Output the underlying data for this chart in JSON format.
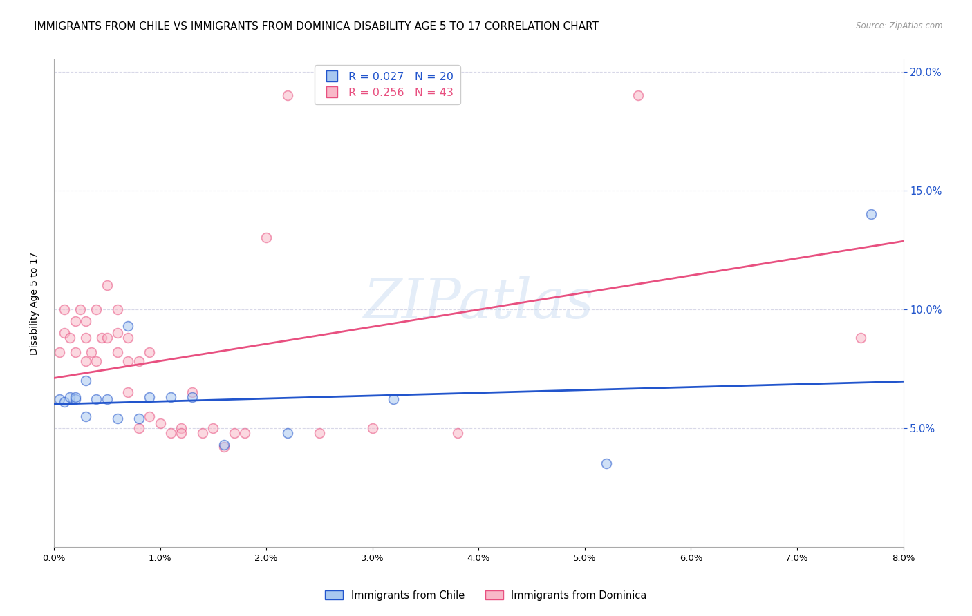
{
  "title": "IMMIGRANTS FROM CHILE VS IMMIGRANTS FROM DOMINICA DISABILITY AGE 5 TO 17 CORRELATION CHART",
  "source": "Source: ZipAtlas.com",
  "ylabel": "Disability Age 5 to 17",
  "x_min": 0.0,
  "x_max": 0.08,
  "y_min": 0.0,
  "y_max": 0.205,
  "chile_color": "#a8c8f0",
  "dominica_color": "#f8b8c8",
  "chile_line_color": "#2255cc",
  "dominica_line_color": "#e85080",
  "legend_chile_label": "R = 0.027   N = 20",
  "legend_dominica_label": "R = 0.256   N = 43",
  "legend_chile_series": "Immigrants from Chile",
  "legend_dominica_series": "Immigrants from Dominica",
  "chile_x": [
    0.0005,
    0.001,
    0.0015,
    0.002,
    0.002,
    0.003,
    0.003,
    0.004,
    0.005,
    0.006,
    0.007,
    0.008,
    0.009,
    0.011,
    0.013,
    0.016,
    0.022,
    0.032,
    0.052,
    0.077
  ],
  "chile_y": [
    0.062,
    0.061,
    0.063,
    0.062,
    0.063,
    0.055,
    0.07,
    0.062,
    0.062,
    0.054,
    0.093,
    0.054,
    0.063,
    0.063,
    0.063,
    0.043,
    0.048,
    0.062,
    0.035,
    0.14
  ],
  "dominica_x": [
    0.0005,
    0.001,
    0.001,
    0.0015,
    0.002,
    0.002,
    0.0025,
    0.003,
    0.003,
    0.003,
    0.0035,
    0.004,
    0.004,
    0.0045,
    0.005,
    0.005,
    0.006,
    0.006,
    0.006,
    0.007,
    0.007,
    0.007,
    0.008,
    0.008,
    0.009,
    0.009,
    0.01,
    0.011,
    0.012,
    0.012,
    0.013,
    0.014,
    0.015,
    0.016,
    0.017,
    0.018,
    0.02,
    0.022,
    0.025,
    0.03,
    0.038,
    0.055,
    0.076
  ],
  "dominica_y": [
    0.082,
    0.1,
    0.09,
    0.088,
    0.082,
    0.095,
    0.1,
    0.095,
    0.088,
    0.078,
    0.082,
    0.1,
    0.078,
    0.088,
    0.11,
    0.088,
    0.1,
    0.09,
    0.082,
    0.078,
    0.088,
    0.065,
    0.05,
    0.078,
    0.082,
    0.055,
    0.052,
    0.048,
    0.05,
    0.048,
    0.065,
    0.048,
    0.05,
    0.042,
    0.048,
    0.048,
    0.13,
    0.19,
    0.048,
    0.05,
    0.048,
    0.19,
    0.088
  ],
  "grid_color": "#d8d8e8",
  "background_color": "#ffffff",
  "watermark_text": "ZIPatlas",
  "title_fontsize": 11,
  "axis_label_fontsize": 10,
  "tick_fontsize": 9.5,
  "marker_size": 100,
  "marker_alpha": 0.55,
  "chile_trendline_slope": 0.12,
  "chile_trendline_intercept": 0.06,
  "dominica_trendline_slope": 0.72,
  "dominica_trendline_intercept": 0.071
}
